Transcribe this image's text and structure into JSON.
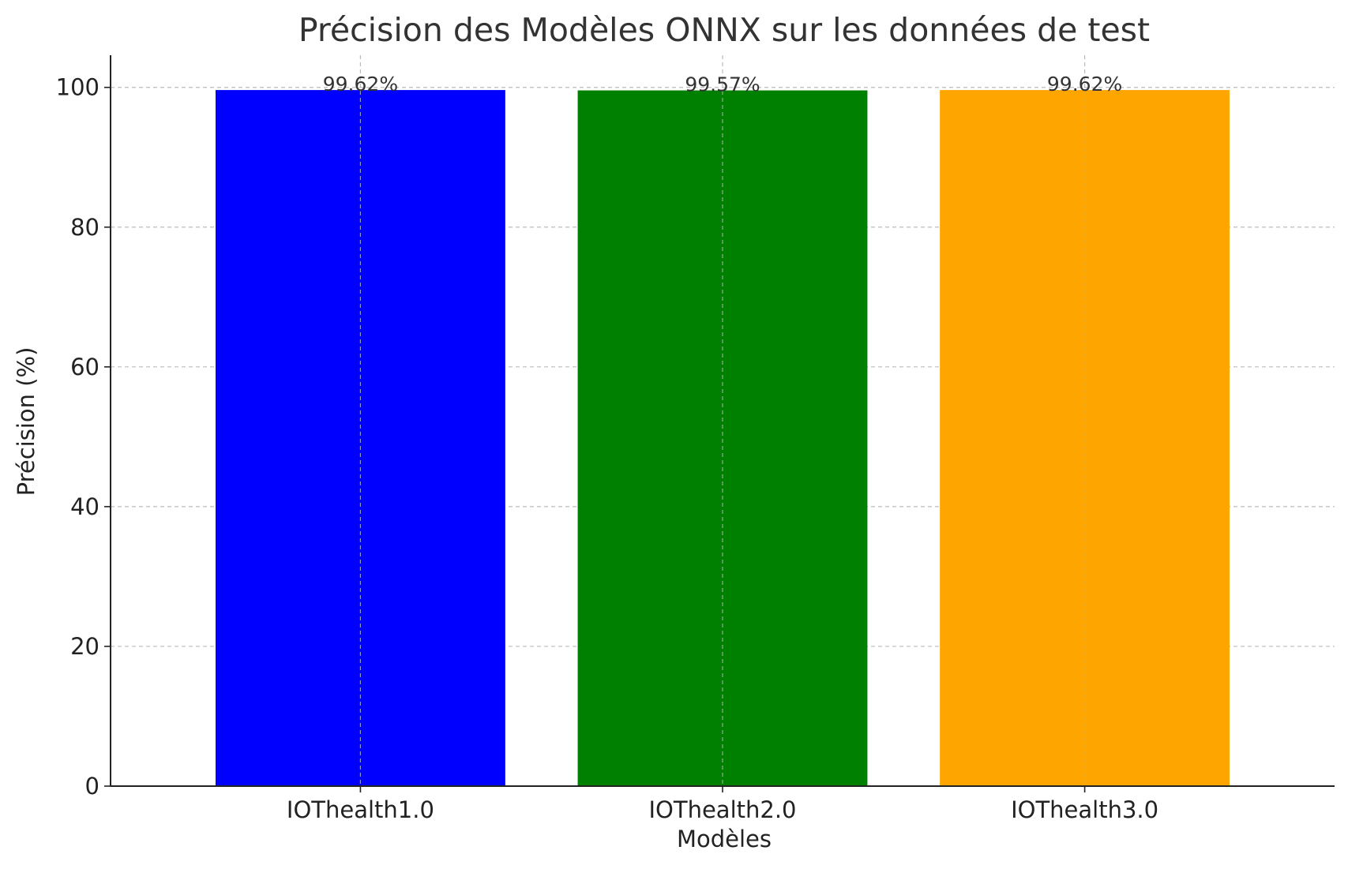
{
  "chart_data": {
    "type": "bar",
    "title": "Précision des Modèles ONNX sur les données de test",
    "xlabel": "Modèles",
    "ylabel": "Précision (%)",
    "categories": [
      "IOThealth1.0",
      "IOThealth2.0",
      "IOThealth3.0"
    ],
    "values": [
      99.62,
      99.57,
      99.62
    ],
    "data_labels": [
      "99.62%",
      "99.57%",
      "99.62%"
    ],
    "colors": [
      "#0000ff",
      "#008000",
      "#ffa500"
    ],
    "ylim": [
      0,
      104.6
    ],
    "yticks": [
      0,
      20,
      40,
      60,
      80,
      100
    ],
    "ytick_labels": [
      "0",
      "20",
      "40",
      "60",
      "80",
      "100"
    ],
    "grid": true,
    "legend": "none"
  }
}
